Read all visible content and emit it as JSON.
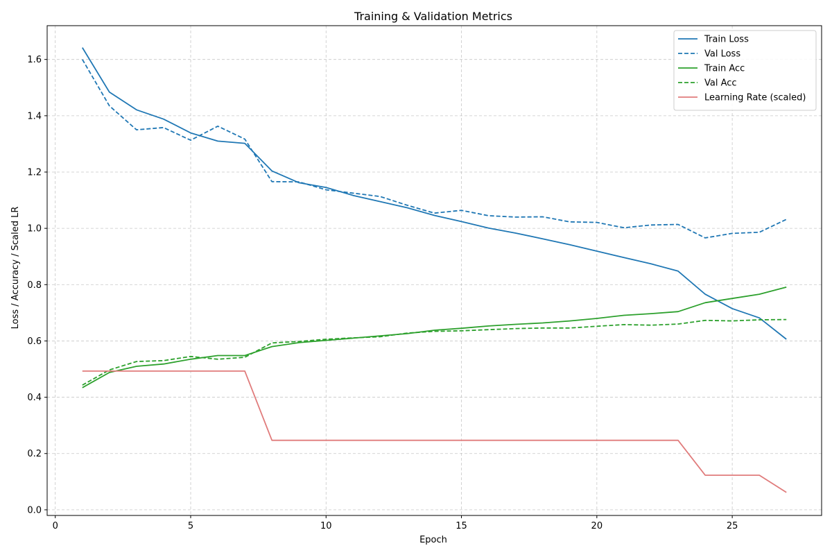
{
  "chart_data": {
    "type": "line",
    "title": "Training & Validation Metrics",
    "xlabel": "Epoch",
    "ylabel": "Loss / Accuracy / Scaled LR",
    "xlim": [
      -0.3,
      28.3
    ],
    "ylim": [
      -0.02,
      1.72
    ],
    "xticks": [
      0,
      5,
      10,
      15,
      20,
      25
    ],
    "yticks": [
      0.0,
      0.2,
      0.4,
      0.6,
      0.8,
      1.0,
      1.2,
      1.4,
      1.6
    ],
    "xtick_labels": [
      "0",
      "5",
      "10",
      "15",
      "20",
      "25"
    ],
    "ytick_labels": [
      "0.0",
      "0.2",
      "0.4",
      "0.6",
      "0.8",
      "1.0",
      "1.2",
      "1.4",
      "1.6"
    ],
    "grid": true,
    "legend_position": "top-right",
    "x": [
      1,
      2,
      3,
      4,
      5,
      6,
      7,
      8,
      9,
      10,
      11,
      12,
      13,
      14,
      15,
      16,
      17,
      18,
      19,
      20,
      21,
      22,
      23,
      24,
      25,
      26,
      27
    ],
    "series": [
      {
        "name": "Train Loss",
        "color": "#1f77b4",
        "style": "solid",
        "values": [
          1.642,
          1.484,
          1.421,
          1.388,
          1.339,
          1.31,
          1.302,
          1.204,
          1.162,
          1.145,
          1.117,
          1.095,
          1.073,
          1.046,
          1.024,
          1.001,
          0.983,
          0.963,
          0.942,
          0.919,
          0.896,
          0.874,
          0.848,
          0.766,
          0.715,
          0.682,
          0.606
        ]
      },
      {
        "name": "Val Loss",
        "color": "#1f77b4",
        "style": "dashed",
        "values": [
          1.6,
          1.435,
          1.35,
          1.358,
          1.313,
          1.363,
          1.317,
          1.166,
          1.165,
          1.137,
          1.125,
          1.113,
          1.082,
          1.054,
          1.064,
          1.045,
          1.04,
          1.041,
          1.023,
          1.021,
          1.002,
          1.012,
          1.014,
          0.966,
          0.982,
          0.986,
          1.032
        ]
      },
      {
        "name": "Train Acc",
        "color": "#2ca02c",
        "style": "solid",
        "values": [
          0.434,
          0.488,
          0.51,
          0.518,
          0.535,
          0.548,
          0.548,
          0.58,
          0.594,
          0.602,
          0.61,
          0.618,
          0.626,
          0.638,
          0.645,
          0.653,
          0.659,
          0.664,
          0.671,
          0.68,
          0.691,
          0.697,
          0.704,
          0.736,
          0.751,
          0.766,
          0.791
        ]
      },
      {
        "name": "Val Acc",
        "color": "#2ca02c",
        "style": "dashed",
        "values": [
          0.443,
          0.497,
          0.527,
          0.53,
          0.545,
          0.535,
          0.542,
          0.593,
          0.598,
          0.606,
          0.611,
          0.615,
          0.628,
          0.634,
          0.636,
          0.64,
          0.644,
          0.646,
          0.646,
          0.652,
          0.658,
          0.656,
          0.66,
          0.673,
          0.671,
          0.675,
          0.676
        ]
      },
      {
        "name": "Learning Rate (scaled)",
        "color": "#e07b7b",
        "style": "solid",
        "values": [
          0.493,
          0.493,
          0.493,
          0.493,
          0.493,
          0.493,
          0.493,
          0.247,
          0.247,
          0.247,
          0.247,
          0.247,
          0.247,
          0.247,
          0.247,
          0.247,
          0.247,
          0.247,
          0.247,
          0.247,
          0.247,
          0.247,
          0.247,
          0.123,
          0.123,
          0.123,
          0.062
        ]
      }
    ]
  }
}
